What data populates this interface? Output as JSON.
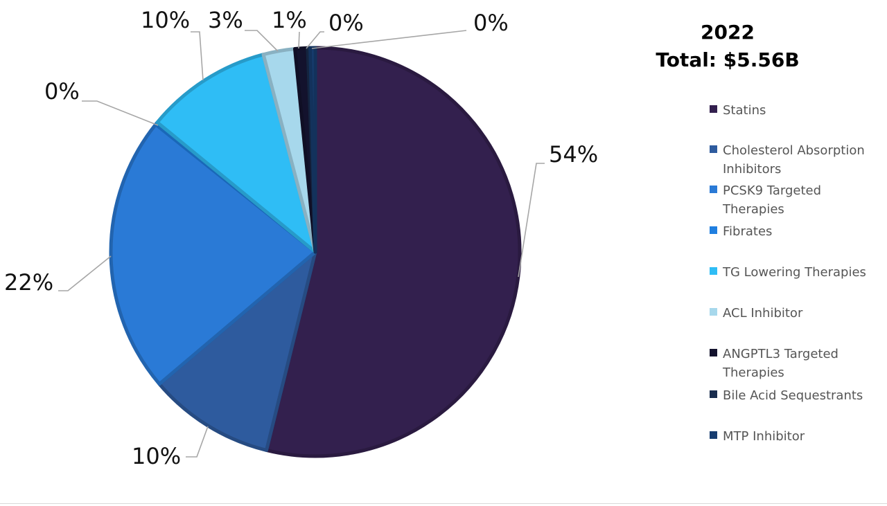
{
  "chart_data": {
    "type": "pie",
    "title": "2022",
    "subtitle": "Total: $5.56B",
    "legend_position": "right",
    "categories": [
      "Statins",
      "Cholesterol Absorption Inhibitors",
      "PCSK9 Targeted Therapies",
      "Fibrates",
      "TG Lowering Therapies",
      "ACL Inhibitor",
      "ANGPTL3 Targeted Therapies",
      "Bile Acid Sequestrants",
      "MTP Inhibitor"
    ],
    "values": [
      54,
      10,
      22,
      0.2,
      10,
      2.5,
      1,
      0.2,
      0.4
    ],
    "data_labels": [
      "54%",
      "10%",
      "22%",
      "0%",
      "10%",
      "3%",
      "1%",
      "0%",
      "0%"
    ],
    "colors": [
      "#33204e",
      "#2e5b9e",
      "#2a7ad6",
      "#1f7fe0",
      "#2fbdf5",
      "#a7d8ec",
      "#13122d",
      "#182c4d",
      "#173d70"
    ]
  }
}
